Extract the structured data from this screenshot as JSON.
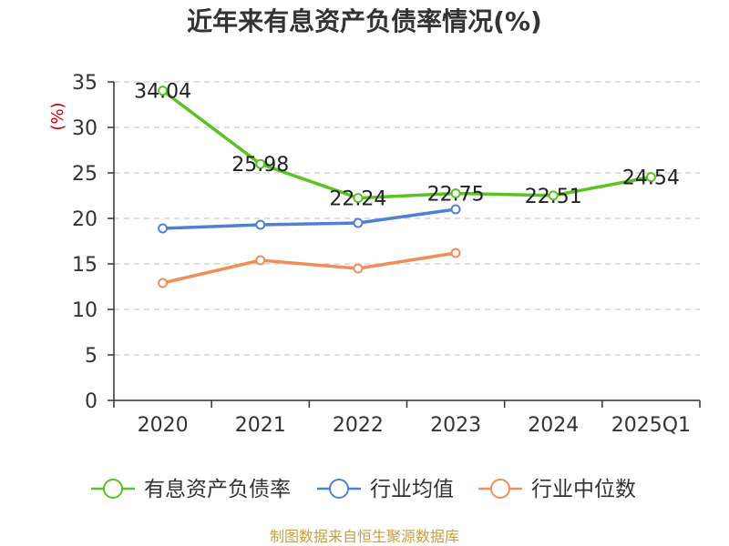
{
  "chart_data": {
    "type": "line",
    "title": "近年来有息资产负债率情况(%)",
    "ylabel": "(%)",
    "xlabel": "",
    "categories": [
      "2020",
      "2021",
      "2022",
      "2023",
      "2024",
      "2025Q1"
    ],
    "ylim": [
      0,
      35
    ],
    "yticks": [
      0,
      5,
      10,
      15,
      20,
      25,
      30,
      35
    ],
    "grid": true,
    "legend_position": "bottom",
    "series": [
      {
        "name": "有息资产负债率",
        "color": "#5bc21f",
        "values": [
          34.04,
          25.98,
          22.24,
          22.75,
          22.51,
          24.54
        ],
        "labels": [
          "34.04",
          "25.98",
          "22.24",
          "22.75",
          "22.51",
          "24.54"
        ]
      },
      {
        "name": "行业均值",
        "color": "#4f7fd6",
        "values": [
          18.9,
          19.3,
          19.5,
          21.0,
          null,
          null
        ]
      },
      {
        "name": "行业中位数",
        "color": "#f28c58",
        "values": [
          12.9,
          15.4,
          14.5,
          16.2,
          null,
          null
        ]
      }
    ],
    "source": "制图数据来自恒生聚源数据库"
  }
}
